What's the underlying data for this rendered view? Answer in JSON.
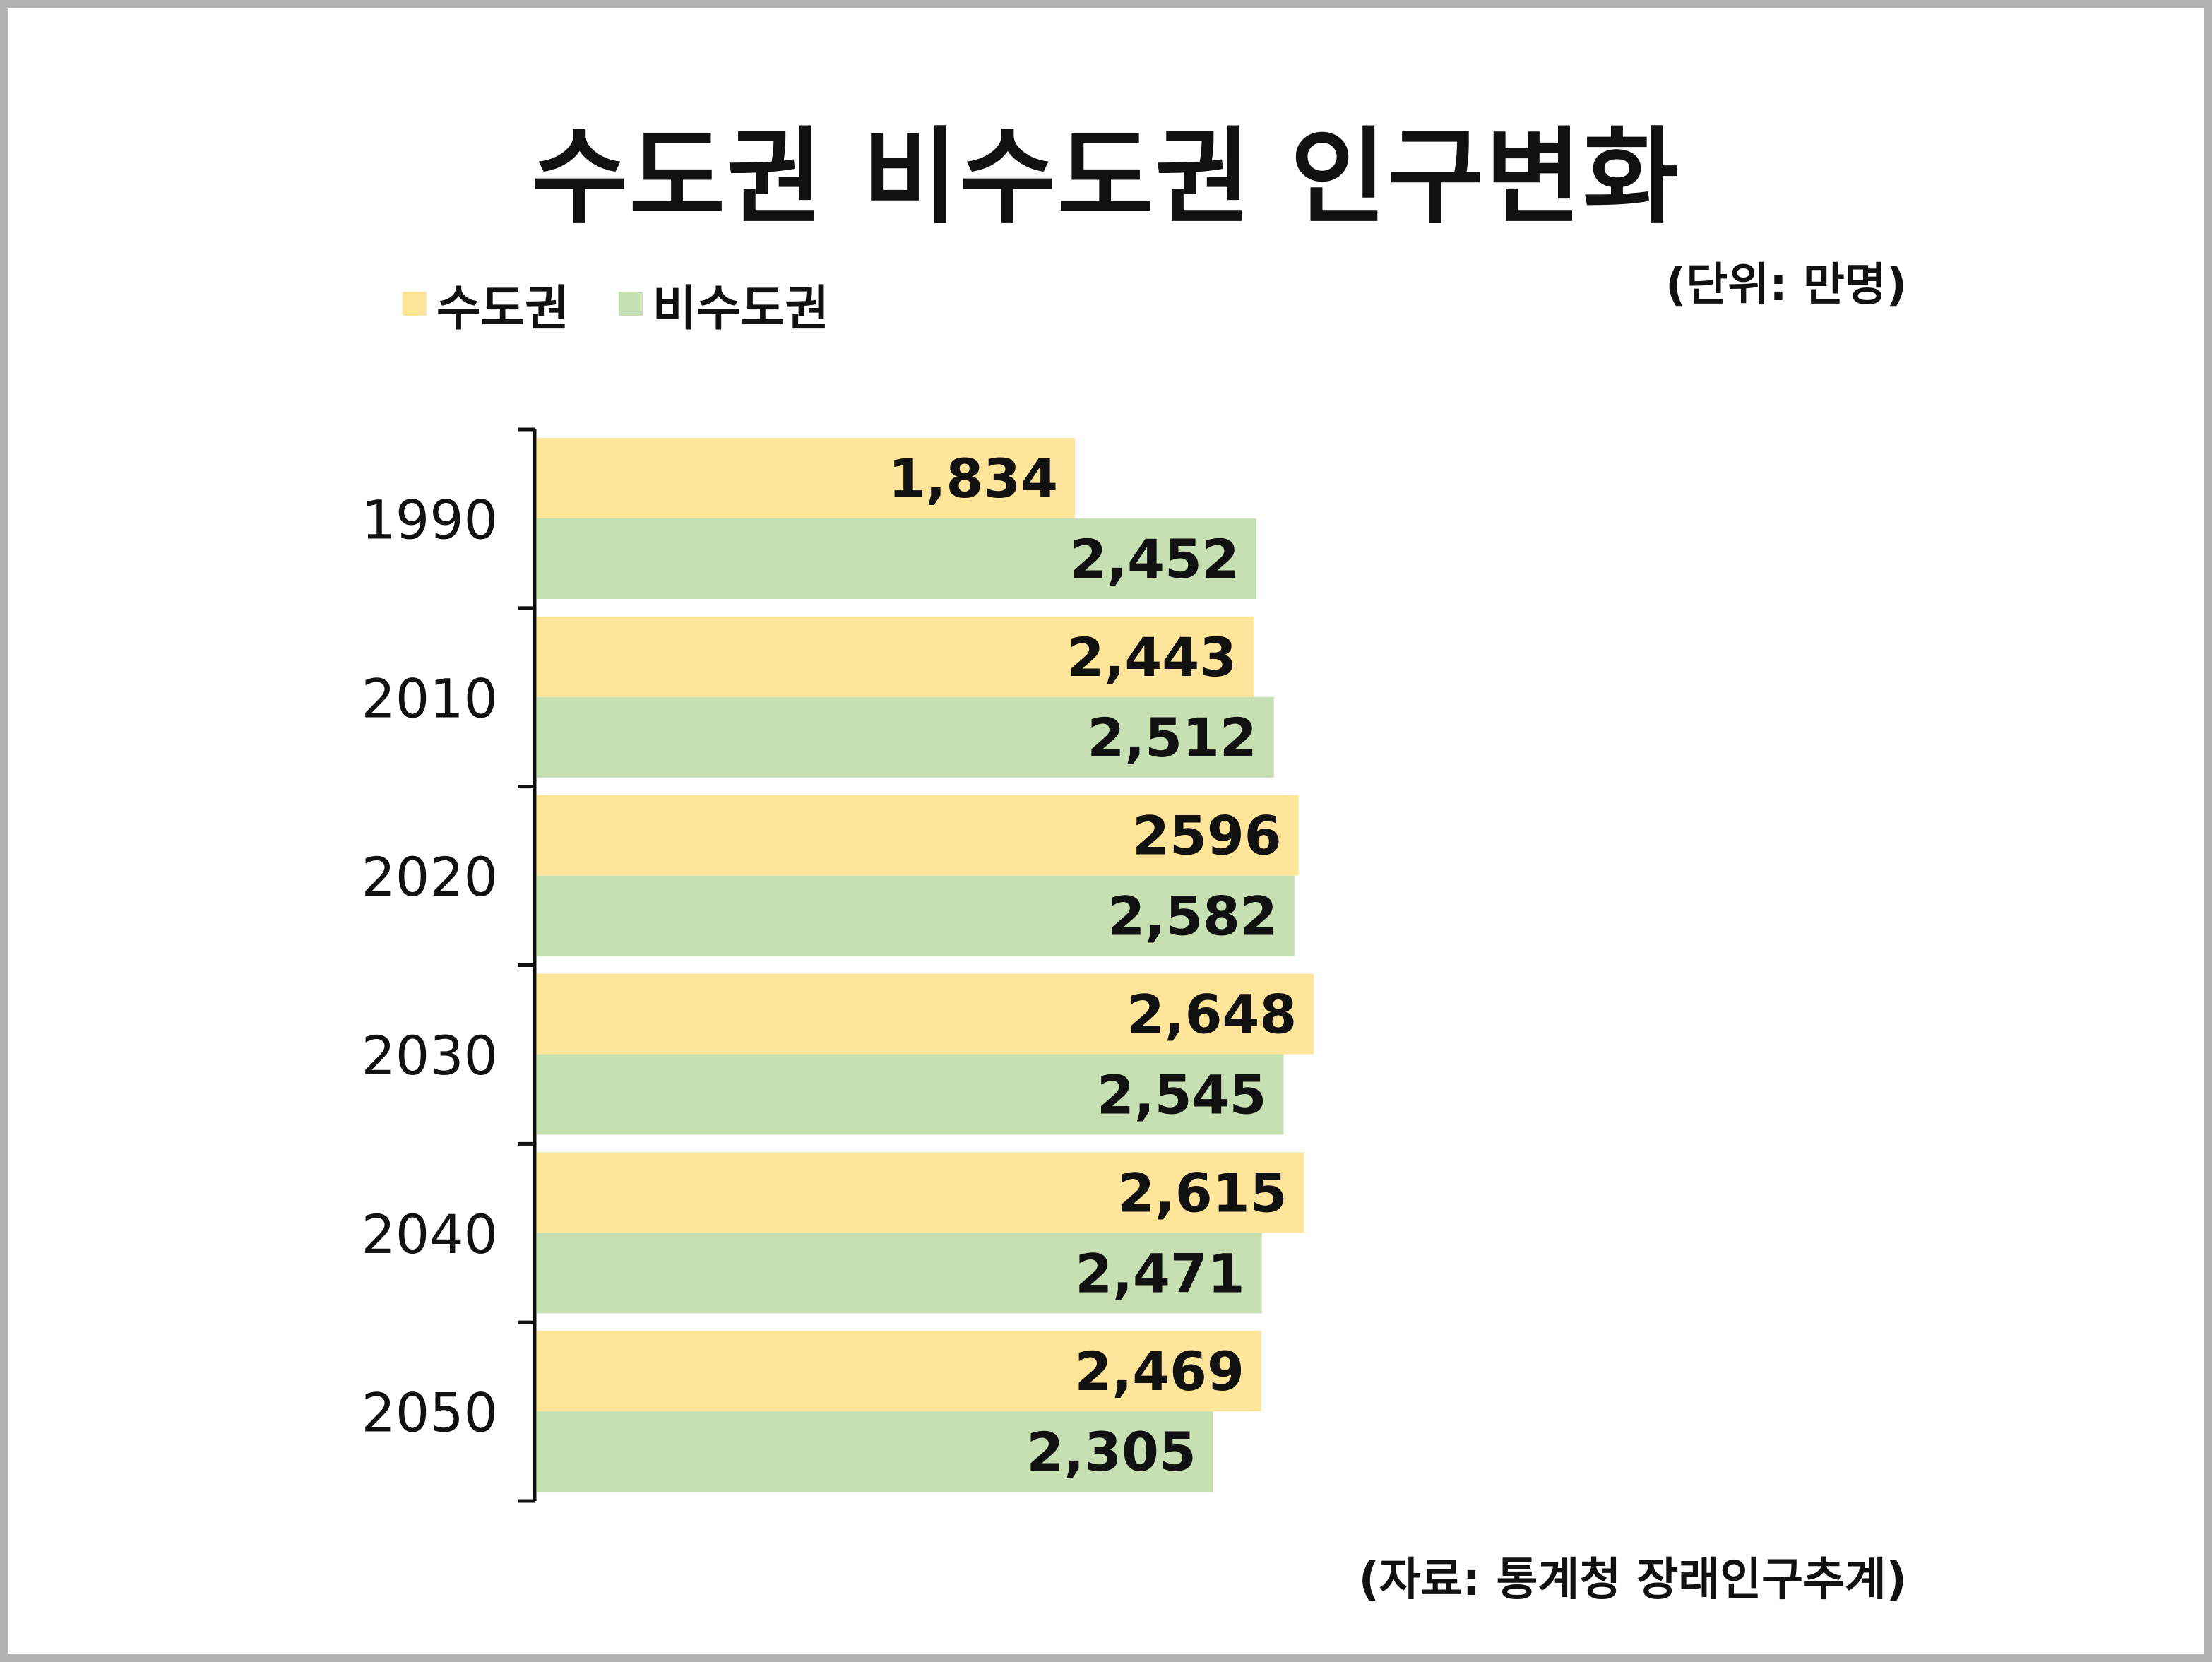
{
  "title": "수도권 비수도권 인구변화",
  "unit_note": "(단위: 만명)",
  "source_note": "(자료: 통계청 장래인구추계)",
  "legend": [
    {
      "label": "수도권",
      "color": "#ffe59a"
    },
    {
      "label": "비수도권",
      "color": "#c6e0b4"
    }
  ],
  "chart_data": {
    "type": "bar",
    "orientation": "horizontal",
    "title": "수도권 비수도권 인구변화",
    "categories": [
      "1990",
      "2010",
      "2020",
      "2030",
      "2040",
      "2050"
    ],
    "series": [
      {
        "name": "수도권",
        "color": "#ffe59a",
        "values": [
          1834,
          2443,
          2596,
          2648,
          2615,
          2469
        ],
        "labels": [
          "1,834",
          "2,443",
          "2596",
          "2,648",
          "2,615",
          "2,469"
        ]
      },
      {
        "name": "비수도권",
        "color": "#c6e0b4",
        "values": [
          2452,
          2512,
          2582,
          2545,
          2471,
          2305
        ],
        "labels": [
          "2,452",
          "2,512",
          "2,582",
          "2,545",
          "2,471",
          "2,305"
        ]
      }
    ],
    "value_axis_visible": false,
    "grid": false,
    "legend_position": "top-left"
  }
}
